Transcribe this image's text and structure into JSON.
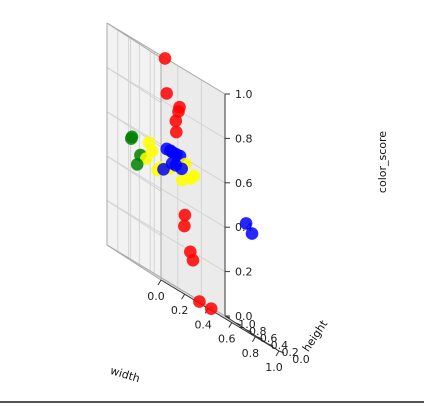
{
  "chart_data": {
    "type": "scatter",
    "projection": "3d",
    "xlabel": "width",
    "ylabel": "height",
    "zlabel": "color_score",
    "xlim": [
      0,
      1
    ],
    "ylim": [
      0,
      1
    ],
    "zlim": [
      0,
      1
    ],
    "x_ticks": [
      "0.0",
      "0.2",
      "0.4",
      "0.6",
      "0.8",
      "1.0"
    ],
    "y_ticks": [
      "0.0",
      "0.2",
      "0.4",
      "0.6",
      "0.8",
      "1.0"
    ],
    "z_ticks": [
      "0.0",
      "0.2",
      "0.4",
      "0.6",
      "0.8",
      "1.0"
    ],
    "grid": true,
    "series": [
      {
        "color": "#0000ff",
        "points": [
          {
            "x": 0.4,
            "y": 0.6,
            "z": 0.55
          },
          {
            "x": 0.35,
            "y": 0.55,
            "z": 0.6
          },
          {
            "x": 0.4,
            "y": 0.7,
            "z": 0.6
          },
          {
            "x": 0.3,
            "y": 0.45,
            "z": 0.55
          },
          {
            "x": 0.45,
            "y": 0.6,
            "z": 0.55
          },
          {
            "x": 0.55,
            "y": 0.85,
            "z": 0.6
          },
          {
            "x": 0.3,
            "y": 0.55,
            "z": 0.6
          },
          {
            "x": 0.25,
            "y": 0.5,
            "z": 0.5
          },
          {
            "x": 0.95,
            "y": 0.5,
            "z": 0.48
          },
          {
            "x": 1.0,
            "y": 0.5,
            "z": 0.45
          },
          {
            "x": 0.45,
            "y": 0.7,
            "z": 0.6
          }
        ]
      },
      {
        "color": "#ff0000",
        "points": [
          {
            "x": 0.4,
            "y": 0.8,
            "z": 1.0
          },
          {
            "x": 0.4,
            "y": 0.55,
            "z": 0.8
          },
          {
            "x": 0.5,
            "y": 0.75,
            "z": 0.82
          },
          {
            "x": 0.45,
            "y": 0.7,
            "z": 0.7
          },
          {
            "x": 0.4,
            "y": 0.6,
            "z": 0.75
          },
          {
            "x": 0.3,
            "y": 0.55,
            "z": 0.85
          },
          {
            "x": 0.5,
            "y": 0.65,
            "z": 0.35
          },
          {
            "x": 0.45,
            "y": 0.55,
            "z": 0.3
          },
          {
            "x": 0.5,
            "y": 0.55,
            "z": 0.2
          },
          {
            "x": 0.5,
            "y": 0.5,
            "z": 0.17
          },
          {
            "x": 0.6,
            "y": 0.6,
            "z": 0.0
          },
          {
            "x": 0.7,
            "y": 0.6,
            "z": 0.0
          }
        ]
      },
      {
        "color": "#ffff00",
        "points": [
          {
            "x": 0.15,
            "y": 0.6,
            "z": 0.5
          },
          {
            "x": 0.2,
            "y": 0.6,
            "z": 0.55
          },
          {
            "x": 0.15,
            "y": 0.55,
            "z": 0.58
          },
          {
            "x": 0.2,
            "y": 0.5,
            "z": 0.48
          },
          {
            "x": 0.25,
            "y": 0.55,
            "z": 0.5
          },
          {
            "x": 0.5,
            "y": 0.7,
            "z": 0.5
          },
          {
            "x": 0.55,
            "y": 0.65,
            "z": 0.53
          },
          {
            "x": 0.6,
            "y": 0.7,
            "z": 0.55
          },
          {
            "x": 0.55,
            "y": 0.75,
            "z": 0.58
          },
          {
            "x": 0.35,
            "y": 0.6,
            "z": 0.52
          }
        ]
      },
      {
        "color": "#008000",
        "points": [
          {
            "x": 0.0,
            "y": 0.55,
            "z": 0.55
          },
          {
            "x": 0.02,
            "y": 0.58,
            "z": 0.56
          },
          {
            "x": 0.05,
            "y": 0.55,
            "z": 0.45
          },
          {
            "x": 0.1,
            "y": 0.6,
            "z": 0.5
          }
        ]
      }
    ]
  }
}
